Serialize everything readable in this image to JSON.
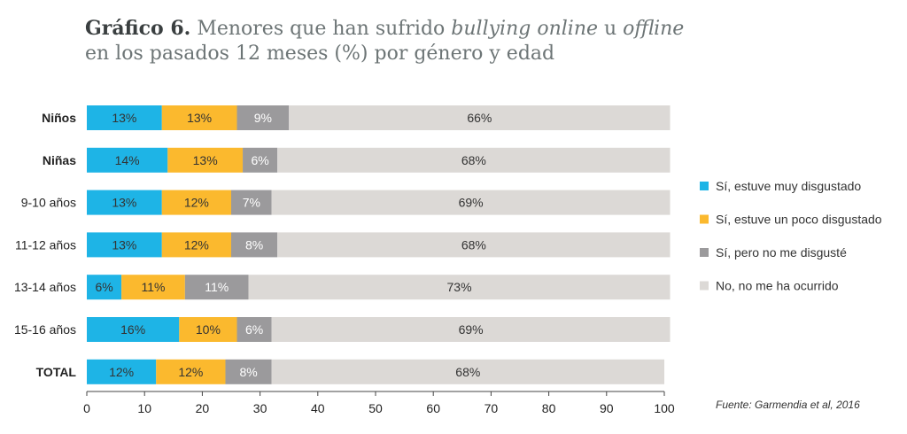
{
  "title": {
    "lead": "Gráfico 6.",
    "line1_a": " Menores que han sufrido ",
    "line1_em1": "bullying online",
    "line1_b": " u ",
    "line1_em2": "offline",
    "line2": "en los pasados 12 meses (%) por género y edad"
  },
  "source": "Fuente: Garmendia et al, 2016",
  "chart_data": {
    "type": "bar",
    "orientation": "horizontal",
    "stacked": true,
    "categories": [
      "Niños",
      "Niñas",
      "9-10 años",
      "11-12 años",
      "13-14 años",
      "15-16 años",
      "TOTAL"
    ],
    "bold_categories": [
      "Niños",
      "Niñas",
      "TOTAL"
    ],
    "series": [
      {
        "name": "Sí, estuve muy disgustado",
        "color": "#1eb4e6",
        "values": [
          13,
          14,
          13,
          13,
          6,
          16,
          12
        ]
      },
      {
        "name": "Sí, estuve un poco disgustado",
        "color": "#fbb92e",
        "values": [
          13,
          13,
          12,
          12,
          11,
          10,
          12
        ]
      },
      {
        "name": "Sí, pero no me disgusté",
        "color": "#9b9a9c",
        "values": [
          9,
          6,
          7,
          8,
          11,
          6,
          8
        ]
      },
      {
        "name": "No, no me ha ocurrido",
        "color": "#dcd9d6",
        "values": [
          66,
          68,
          69,
          68,
          73,
          69,
          68
        ]
      }
    ],
    "xlim": [
      0,
      100
    ],
    "xticks": [
      0,
      10,
      20,
      30,
      40,
      50,
      60,
      70,
      80,
      90,
      100
    ],
    "grid": false,
    "legend_position": "right"
  }
}
